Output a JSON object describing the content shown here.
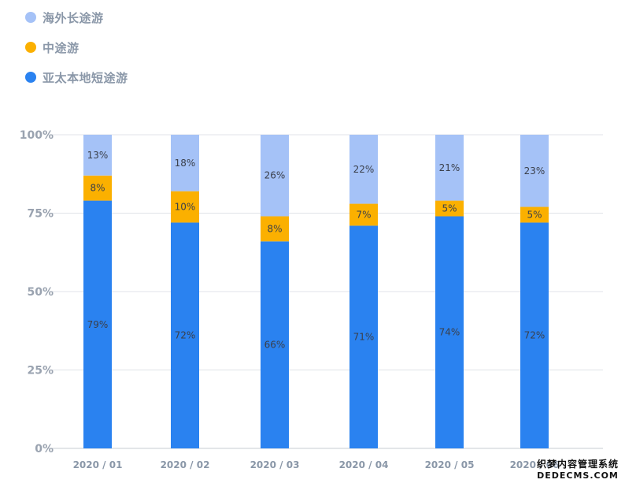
{
  "chart_data": {
    "type": "bar",
    "stacked": true,
    "categories": [
      "2020 / 01",
      "2020 / 02",
      "2020 / 03",
      "2020 / 04",
      "2020 / 05",
      "2020 / 06"
    ],
    "series": [
      {
        "name": "亚太本地短途游",
        "color": "#2a82f0",
        "values": [
          79,
          72,
          66,
          71,
          74,
          72
        ],
        "labels": [
          "79%",
          "72%",
          "66%",
          "71%",
          "74%",
          "72%"
        ]
      },
      {
        "name": "中途游",
        "color": "#fbb000",
        "values": [
          8,
          10,
          8,
          7,
          5,
          5
        ],
        "labels": [
          "8%",
          "10%",
          "8%",
          "7%",
          "5%",
          "5%"
        ]
      },
      {
        "name": "海外长途游",
        "color": "#a5c2f7",
        "values": [
          13,
          18,
          26,
          22,
          21,
          23
        ],
        "labels": [
          "13%",
          "18%",
          "26%",
          "22%",
          "21%",
          "23%"
        ]
      }
    ],
    "yticks": [
      "100%",
      "75%",
      "50%",
      "25%",
      "0%"
    ],
    "ylim": [
      0,
      100
    ],
    "legend_position": "top-left",
    "grid": true
  },
  "legend": [
    {
      "label": "海外长途游",
      "color": "#a5c2f7"
    },
    {
      "label": "中途游",
      "color": "#fbb000"
    },
    {
      "label": "亚太本地短途游",
      "color": "#2a82f0"
    }
  ],
  "watermark": {
    "line1": "织梦内容管理系统",
    "line2": "DEDECMS.COM"
  }
}
